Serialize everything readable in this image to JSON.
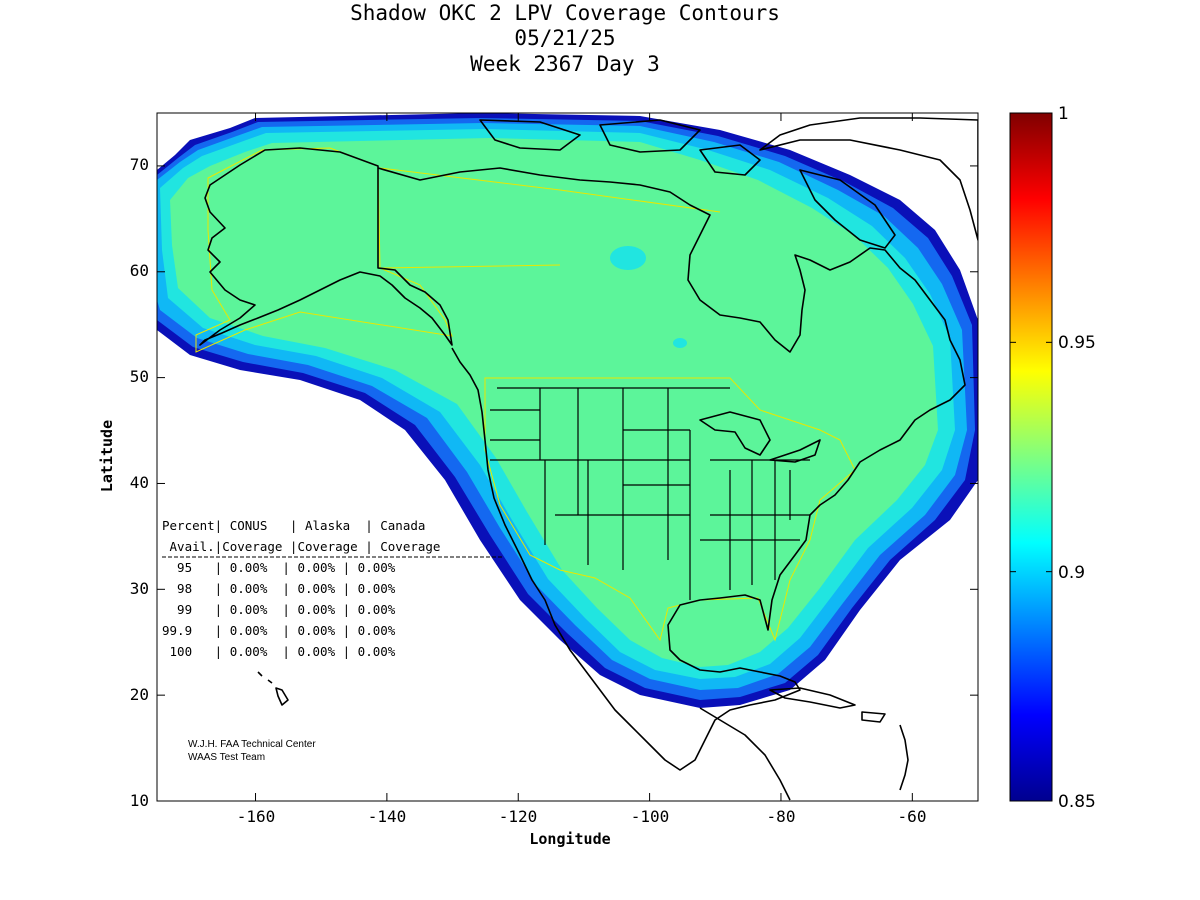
{
  "title": {
    "line1": "Shadow OKC 2 LPV Coverage Contours",
    "line2": "05/21/25",
    "line3": "Week 2367 Day 3"
  },
  "axes": {
    "xlabel": "Longitude",
    "ylabel": "Latitude",
    "xlim": [
      -175,
      -50
    ],
    "ylim": [
      10,
      75
    ],
    "xticks": [
      "-160",
      "-140",
      "-120",
      "-100",
      "-80",
      "-60"
    ],
    "yticks": [
      "10",
      "20",
      "30",
      "40",
      "50",
      "60",
      "70"
    ]
  },
  "colorbar": {
    "min": 0.85,
    "max": 1.0,
    "ticks": [
      "0.85",
      "0.9",
      "0.95",
      "1"
    ],
    "colormap": "jet"
  },
  "colors": {
    "coverage_core": "#5cf59a",
    "coverage_mid": "#21e5e0",
    "coverage_edge": "#0a30d8",
    "boundary_line": "#e8e800"
  },
  "table": {
    "header1": "Percent| CONUS   | Alaska  | Canada",
    "header2": " Avail.|Coverage |Coverage | Coverage",
    "rows": [
      "  95   | 0.00%  | 0.00% | 0.00%",
      "  98   | 0.00%  | 0.00% | 0.00%",
      "  99   | 0.00%  | 0.00% | 0.00%",
      "99.9   | 0.00%  | 0.00% | 0.00%",
      " 100   | 0.00%  | 0.00% | 0.00%"
    ]
  },
  "credits": {
    "line1": "W.J.H. FAA Technical Center",
    "line2": "WAAS Test Team"
  }
}
